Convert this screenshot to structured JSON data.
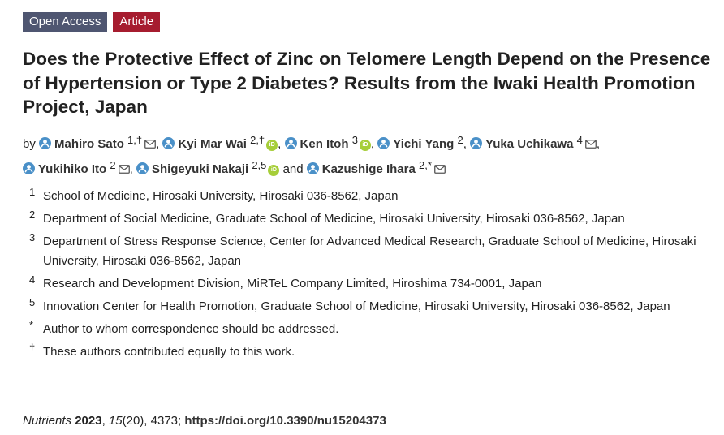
{
  "badges": {
    "open_access": "Open Access",
    "article": "Article"
  },
  "title": "Does the Protective Effect of Zinc on Telomere Length Depend on the Presence of Hypertension or Type 2 Diabetes? Results from the Iwaki Health Promotion Project, Japan",
  "by_label": "by",
  "and_label": "and",
  "authors": [
    {
      "name": "Mahiro Sato",
      "sup": "1,†",
      "mail": true,
      "orcid": false
    },
    {
      "name": "Kyi Mar Wai",
      "sup": "2,†",
      "mail": false,
      "orcid": true
    },
    {
      "name": "Ken Itoh",
      "sup": "3",
      "mail": false,
      "orcid": true
    },
    {
      "name": "Yichi Yang",
      "sup": "2",
      "mail": false,
      "orcid": false
    },
    {
      "name": "Yuka Uchikawa",
      "sup": "4",
      "mail": true,
      "orcid": false
    },
    {
      "name": "Yukihiko Ito",
      "sup": "2",
      "mail": true,
      "orcid": false
    },
    {
      "name": "Shigeyuki Nakaji",
      "sup": "2,5",
      "mail": false,
      "orcid": true
    },
    {
      "name": "Kazushige Ihara",
      "sup": "2,*",
      "mail": true,
      "orcid": false
    }
  ],
  "orcid_text": "iD",
  "affiliations": [
    {
      "marker": "1",
      "text": "School of Medicine, Hirosaki University, Hirosaki 036-8562, Japan"
    },
    {
      "marker": "2",
      "text": "Department of Social Medicine, Graduate School of Medicine, Hirosaki University, Hirosaki 036-8562, Japan"
    },
    {
      "marker": "3",
      "text": "Department of Stress Response Science, Center for Advanced Medical Research, Graduate School of Medicine, Hirosaki University, Hirosaki 036-8562, Japan"
    },
    {
      "marker": "4",
      "text": "Research and Development Division, MiRTeL Company Limited, Hiroshima 734-0001, Japan"
    },
    {
      "marker": "5",
      "text": "Innovation Center for Health Promotion, Graduate School of Medicine, Hirosaki University, Hirosaki 036-8562, Japan"
    },
    {
      "marker": "*",
      "text": "Author to whom correspondence should be addressed."
    },
    {
      "marker": "†",
      "text": "These authors contributed equally to this work."
    }
  ],
  "citation": {
    "journal": "Nutrients",
    "year": "2023",
    "volume": "15",
    "issue": "(20)",
    "pages": "4373",
    "doi_text": "https://doi.org/10.3390/nu15204373"
  }
}
